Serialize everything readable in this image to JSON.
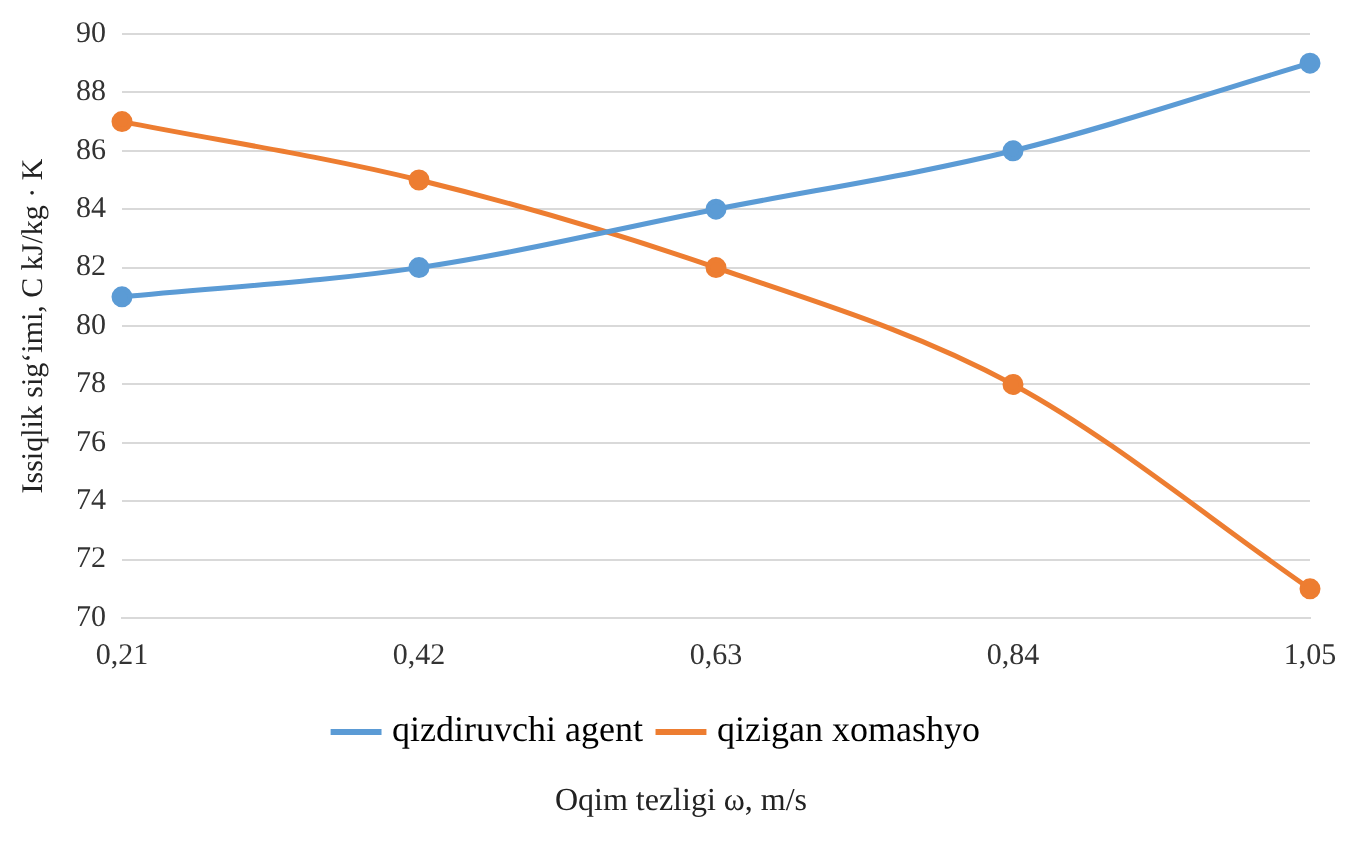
{
  "chart_data": {
    "type": "line",
    "xlabel": "Oqim tezligi ω, m/s",
    "ylabel": "Issiqlik sig‘imi, C kJ/kg · K",
    "categories": [
      "0,21",
      "0,42",
      "0,63",
      "0,84",
      "1,05"
    ],
    "series": [
      {
        "name": "qizdiruvchi agent",
        "color": "#5b9bd5",
        "values": [
          81,
          82,
          84,
          86,
          89
        ]
      },
      {
        "name": "qizigan xomashyo",
        "color": "#ed7d31",
        "values": [
          87,
          85,
          82,
          78,
          71
        ]
      }
    ],
    "ylim": [
      70,
      90
    ],
    "yticks": [
      70,
      72,
      74,
      76,
      78,
      80,
      82,
      84,
      86,
      88,
      90
    ],
    "grid": "y",
    "legend": "bottom",
    "marker": "circle",
    "line_style": "solid"
  }
}
